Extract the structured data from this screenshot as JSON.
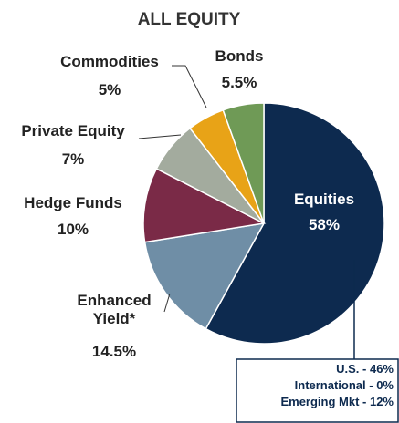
{
  "chart_data": {
    "type": "pie",
    "title": "ALL EQUITY",
    "categories": [
      "Equities",
      "Enhanced Yield*",
      "Hedge Funds",
      "Private Equity",
      "Commodities",
      "Bonds"
    ],
    "values": [
      58,
      14.5,
      10,
      7,
      5,
      5.5
    ],
    "value_labels": [
      "58%",
      "14.5%",
      "10%",
      "7%",
      "5%",
      "5.5%"
    ],
    "colors": [
      "#0d2a4f",
      "#6f8ea6",
      "#7a2a47",
      "#a3ab9e",
      "#e8a317",
      "#6f9a56"
    ],
    "notes": [
      "U.S. - 46%",
      "International - 0%",
      "Emerging Mkt - 12%"
    ]
  }
}
